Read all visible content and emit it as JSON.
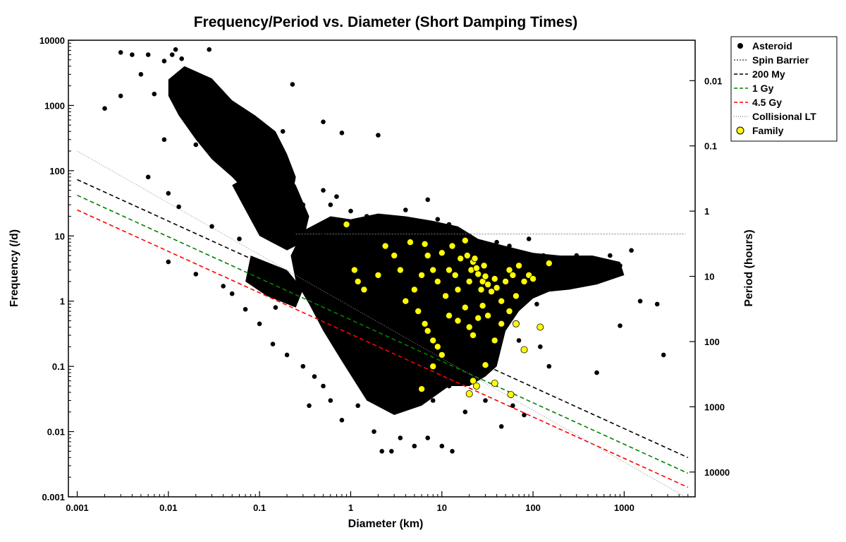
{
  "chart_data": {
    "type": "scatter",
    "title": "Frequency/Period vs. Diameter (Short Damping Times)",
    "xlabel": "Diameter (km)",
    "ylabel": "Frequency (/d)",
    "y2label": "Period (hours)",
    "x_scale": "log",
    "y_scale": "log",
    "xlim": [
      0.0008,
      6000
    ],
    "ylim": [
      0.001,
      10000
    ],
    "x_ticks": [
      "0.001",
      "0.01",
      "0.1",
      "1",
      "10",
      "100",
      "1000"
    ],
    "y_ticks": [
      "0.001",
      "0.01",
      "0.1",
      "1",
      "10",
      "100",
      "1000",
      "10000"
    ],
    "y2_ticks": [
      "0.01",
      "0.1",
      "1",
      "10",
      "100",
      "1000",
      "10000"
    ],
    "grid": false,
    "legend_position": "outside-right-top",
    "series": [
      {
        "name": "Asteroid",
        "kind": "points",
        "color": "#000000",
        "points": [
          [
            0.002,
            900
          ],
          [
            0.003,
            6500
          ],
          [
            0.003,
            1400
          ],
          [
            0.004,
            6000
          ],
          [
            0.005,
            3000
          ],
          [
            0.006,
            6000
          ],
          [
            0.007,
            1500
          ],
          [
            0.009,
            4800
          ],
          [
            0.011,
            6000
          ],
          [
            0.012,
            7200
          ],
          [
            0.014,
            5200
          ],
          [
            0.016,
            2500
          ],
          [
            0.012,
            2200
          ],
          [
            0.018,
            1200
          ],
          [
            0.022,
            600
          ],
          [
            0.028,
            7200
          ],
          [
            0.025,
            450
          ],
          [
            0.02,
            250
          ],
          [
            0.035,
            220
          ],
          [
            0.05,
            600
          ],
          [
            0.015,
            1400
          ],
          [
            0.03,
            1700
          ],
          [
            0.045,
            330
          ],
          [
            0.06,
            140
          ],
          [
            0.08,
            700
          ],
          [
            0.09,
            250
          ],
          [
            0.11,
            150
          ],
          [
            0.18,
            400
          ],
          [
            0.23,
            2100
          ],
          [
            0.2,
            130
          ],
          [
            0.15,
            80
          ],
          [
            0.1,
            60
          ],
          [
            0.5,
            560
          ],
          [
            0.8,
            380
          ],
          [
            2.0,
            350
          ],
          [
            0.006,
            80
          ],
          [
            0.009,
            300
          ],
          [
            0.01,
            45
          ],
          [
            0.013,
            28
          ],
          [
            0.03,
            14
          ],
          [
            0.06,
            9
          ],
          [
            0.01,
            4
          ],
          [
            0.02,
            2.6
          ],
          [
            0.04,
            1.7
          ],
          [
            0.05,
            1.3
          ],
          [
            0.07,
            0.75
          ],
          [
            0.1,
            0.45
          ],
          [
            0.14,
            0.22
          ],
          [
            0.2,
            0.15
          ],
          [
            0.3,
            0.1
          ],
          [
            0.4,
            0.07
          ],
          [
            0.5,
            0.05
          ],
          [
            0.6,
            0.03
          ],
          [
            0.8,
            0.015
          ],
          [
            0.35,
            0.025
          ],
          [
            1.2,
            0.025
          ],
          [
            1.8,
            0.01
          ],
          [
            2.2,
            0.005
          ],
          [
            2.8,
            0.005
          ],
          [
            3.5,
            0.008
          ],
          [
            5,
            0.006
          ],
          [
            7,
            0.008
          ],
          [
            10,
            0.006
          ],
          [
            13,
            0.005
          ],
          [
            18,
            0.02
          ],
          [
            30,
            0.03
          ],
          [
            45,
            0.012
          ],
          [
            60,
            0.025
          ],
          [
            80,
            0.018
          ],
          [
            0.3,
            30
          ],
          [
            0.5,
            50
          ],
          [
            0.6,
            30
          ],
          [
            0.7,
            40
          ],
          [
            1.0,
            24
          ],
          [
            1.5,
            20
          ],
          [
            3,
            18
          ],
          [
            4,
            25
          ],
          [
            5,
            15
          ],
          [
            7,
            36
          ],
          [
            9,
            18
          ],
          [
            12,
            15
          ],
          [
            20,
            10
          ],
          [
            30,
            6
          ],
          [
            40,
            5
          ],
          [
            60,
            6
          ],
          [
            90,
            9
          ],
          [
            130,
            5
          ],
          [
            200,
            4
          ],
          [
            300,
            5
          ],
          [
            450,
            4
          ],
          [
            700,
            5
          ],
          [
            900,
            3.5
          ],
          [
            1200,
            6
          ],
          [
            1500,
            1
          ],
          [
            2300,
            0.9
          ],
          [
            2700,
            0.15
          ],
          [
            900,
            0.42
          ],
          [
            500,
            0.08
          ],
          [
            150,
            0.1
          ],
          [
            120,
            0.2
          ],
          [
            70,
            0.25
          ],
          [
            0.5,
            10
          ],
          [
            1,
            9
          ],
          [
            2,
            8
          ],
          [
            3,
            6
          ],
          [
            5,
            5
          ],
          [
            8,
            4
          ],
          [
            12,
            3.5
          ],
          [
            18,
            4
          ],
          [
            25,
            3
          ],
          [
            35,
            2.5
          ],
          [
            50,
            2
          ],
          [
            70,
            3
          ],
          [
            100,
            2.5
          ],
          [
            150,
            2
          ],
          [
            250,
            2.5
          ],
          [
            400,
            2.5
          ],
          [
            0.6,
            4
          ],
          [
            1.2,
            2
          ],
          [
            2,
            1.5
          ],
          [
            3,
            1
          ],
          [
            4,
            0.7
          ],
          [
            6,
            0.5
          ],
          [
            8,
            0.35
          ],
          [
            10,
            0.25
          ],
          [
            15,
            0.2
          ],
          [
            25,
            0.15
          ],
          [
            1.5,
            0.3
          ],
          [
            2.5,
            0.2
          ],
          [
            3.5,
            0.12
          ],
          [
            5,
            0.08
          ],
          [
            7,
            0.06
          ],
          [
            2,
            0.6
          ],
          [
            1,
            1
          ],
          [
            0.8,
            3
          ],
          [
            0.4,
            2
          ],
          [
            0.25,
            1.5
          ],
          [
            0.15,
            0.8
          ],
          [
            0.7,
            0.2
          ],
          [
            1.5,
            0.1
          ],
          [
            4,
            0.04
          ],
          [
            8,
            0.03
          ],
          [
            12,
            0.05
          ],
          [
            6,
            0.15
          ],
          [
            9,
            0.8
          ],
          [
            14,
            1.2
          ],
          [
            20,
            0.6
          ],
          [
            30,
            1
          ],
          [
            45,
            0.6
          ],
          [
            60,
            0.8
          ],
          [
            85,
            1.2
          ],
          [
            110,
            0.9
          ],
          [
            40,
            8
          ],
          [
            55,
            7
          ]
        ]
      },
      {
        "name": "Family",
        "kind": "points",
        "color": "#ffff00",
        "points": [
          [
            0.9,
            15
          ],
          [
            1.1,
            3
          ],
          [
            1.2,
            2
          ],
          [
            1.4,
            1.5
          ],
          [
            2,
            2.5
          ],
          [
            2.4,
            7
          ],
          [
            3,
            5
          ],
          [
            3.5,
            3
          ],
          [
            4.5,
            8
          ],
          [
            5,
            1.5
          ],
          [
            6,
            2.5
          ],
          [
            6.5,
            7.5
          ],
          [
            7,
            5
          ],
          [
            8,
            3
          ],
          [
            9,
            2
          ],
          [
            10,
            5.5
          ],
          [
            11,
            1.2
          ],
          [
            12,
            3
          ],
          [
            13,
            7
          ],
          [
            14,
            2.5
          ],
          [
            15,
            1.5
          ],
          [
            16,
            4.5
          ],
          [
            18,
            8.5
          ],
          [
            19,
            5
          ],
          [
            20,
            2
          ],
          [
            21,
            3
          ],
          [
            22,
            4
          ],
          [
            23,
            4.5
          ],
          [
            24,
            3.2
          ],
          [
            25,
            2.6
          ],
          [
            27,
            1.5
          ],
          [
            28,
            2
          ],
          [
            29,
            3.5
          ],
          [
            30,
            2.4
          ],
          [
            32,
            1.8
          ],
          [
            35,
            1.4
          ],
          [
            38,
            2.2
          ],
          [
            40,
            1.6
          ],
          [
            45,
            1
          ],
          [
            50,
            2
          ],
          [
            55,
            3
          ],
          [
            60,
            2.5
          ],
          [
            65,
            1.2
          ],
          [
            70,
            3.5
          ],
          [
            80,
            2
          ],
          [
            90,
            2.5
          ],
          [
            100,
            2.2
          ],
          [
            150,
            3.8
          ],
          [
            4,
            1
          ],
          [
            5.5,
            0.7
          ],
          [
            6.5,
            0.45
          ],
          [
            7,
            0.35
          ],
          [
            8,
            0.25
          ],
          [
            9,
            0.2
          ],
          [
            10,
            0.15
          ],
          [
            12,
            0.6
          ],
          [
            15,
            0.5
          ],
          [
            18,
            0.8
          ],
          [
            20,
            0.4
          ],
          [
            22,
            0.3
          ],
          [
            25,
            0.55
          ],
          [
            28,
            0.85
          ],
          [
            32,
            0.6
          ],
          [
            38,
            0.25
          ],
          [
            45,
            0.45
          ],
          [
            55,
            0.7
          ],
          [
            65,
            0.45
          ],
          [
            80,
            0.18
          ],
          [
            8,
            0.1
          ],
          [
            6,
            0.045
          ],
          [
            20,
            0.038
          ],
          [
            22,
            0.06
          ],
          [
            24,
            0.05
          ],
          [
            30,
            0.105
          ],
          [
            38,
            0.055
          ],
          [
            57,
            0.037
          ],
          [
            120,
            0.4
          ]
        ]
      },
      {
        "name": "Spin Barrier",
        "kind": "line",
        "color": "#7f7f7f",
        "dash": "dot",
        "points": [
          [
            0.25,
            10.7
          ],
          [
            4700,
            10.7
          ]
        ]
      },
      {
        "name": "200 My",
        "kind": "line",
        "color": "#000000",
        "dash": "dash",
        "points": [
          [
            0.001,
            73
          ],
          [
            5000,
            0.004
          ]
        ]
      },
      {
        "name": "1 Gy",
        "kind": "line",
        "color": "#008000",
        "dash": "dash",
        "points": [
          [
            0.001,
            42
          ],
          [
            5000,
            0.0023
          ]
        ]
      },
      {
        "name": "4.5 Gy",
        "kind": "line",
        "color": "#ff0000",
        "dash": "dash",
        "points": [
          [
            0.001,
            25
          ],
          [
            5000,
            0.0014
          ]
        ]
      },
      {
        "name": "Collisional LT",
        "kind": "line",
        "color": "#909090",
        "dash": "fine-dot",
        "points": [
          [
            0.001,
            200
          ],
          [
            5000,
            0.00095
          ]
        ]
      }
    ]
  },
  "legend": {
    "items": [
      {
        "label": "Asteroid",
        "symbol": "dot"
      },
      {
        "label": "Spin Barrier",
        "symbol": "dotline"
      },
      {
        "label": "200 My",
        "symbol": "dash-black"
      },
      {
        "label": "1 Gy",
        "symbol": "dash-green"
      },
      {
        "label": "4.5 Gy",
        "symbol": "dash-red"
      },
      {
        "label": "Collisional LT",
        "symbol": "fineline"
      },
      {
        "label": "Family",
        "symbol": "yellow-dot"
      }
    ]
  }
}
